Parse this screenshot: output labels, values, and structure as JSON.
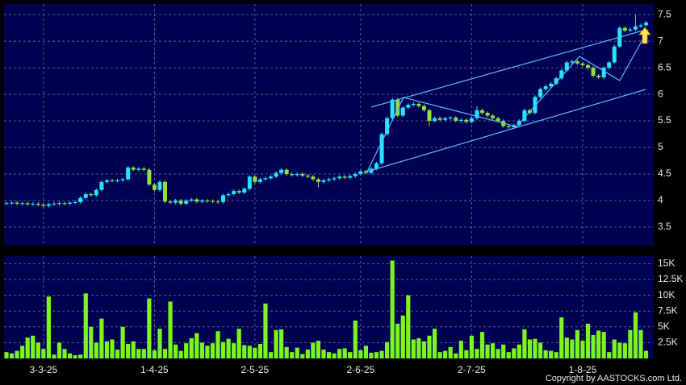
{
  "chart_data": [
    {
      "type": "candlestick",
      "open": [
        3.95,
        3.95,
        3.96,
        3.94,
        3.95,
        3.93,
        3.94,
        3.92,
        3.9,
        3.93,
        3.94,
        3.95,
        3.94,
        3.96,
        3.97,
        4.05,
        4.12,
        4.1,
        4.2,
        4.35,
        4.38,
        4.37,
        4.38,
        4.4,
        4.62,
        4.58,
        4.6,
        4.58,
        4.3,
        4.2,
        4.35,
        3.98,
        3.96,
        4.0,
        3.94,
        4.0,
        4.02,
        3.98,
        4.0,
        3.99,
        3.98,
        3.97,
        4.1,
        4.12,
        4.18,
        4.15,
        4.22,
        4.45,
        4.35,
        4.4,
        4.42,
        4.45,
        4.52,
        4.58,
        4.5,
        4.48,
        4.5,
        4.47,
        4.45,
        4.4,
        4.35,
        4.38,
        4.4,
        4.42,
        4.45,
        4.43,
        4.46,
        4.5,
        4.55,
        4.52,
        4.6,
        4.7,
        5.25,
        5.55,
        5.9,
        5.6,
        5.75,
        5.8,
        5.82,
        5.78,
        5.7,
        5.5,
        5.55,
        5.52,
        5.55,
        5.56,
        5.5,
        5.52,
        5.48,
        5.55,
        5.7,
        5.65,
        5.6,
        5.55,
        5.5,
        5.4,
        5.38,
        5.42,
        5.5,
        5.7,
        5.65,
        5.95,
        6.1,
        6.15,
        6.2,
        6.3,
        6.45,
        6.6,
        6.62,
        6.58,
        6.55,
        6.5,
        6.35,
        6.32,
        6.5,
        6.6,
        6.9,
        7.25,
        7.2,
        7.22,
        7.28,
        7.3
      ],
      "high": [
        3.98,
        3.99,
        3.99,
        3.98,
        3.98,
        3.97,
        3.97,
        3.95,
        3.96,
        3.97,
        3.98,
        3.98,
        3.99,
        4.0,
        4.08,
        4.15,
        4.15,
        4.23,
        4.38,
        4.41,
        4.41,
        4.41,
        4.43,
        4.65,
        4.65,
        4.63,
        4.63,
        4.61,
        4.33,
        4.38,
        4.38,
        4.01,
        4.03,
        4.03,
        4.03,
        4.05,
        4.05,
        4.03,
        4.03,
        4.02,
        4.01,
        4.13,
        4.15,
        4.21,
        4.21,
        4.25,
        4.48,
        4.48,
        4.43,
        4.45,
        4.48,
        4.55,
        4.61,
        4.61,
        4.53,
        4.53,
        4.53,
        4.5,
        4.48,
        4.43,
        4.41,
        4.43,
        4.45,
        4.48,
        4.48,
        4.49,
        4.53,
        4.58,
        4.58,
        4.63,
        4.73,
        5.28,
        5.58,
        5.93,
        5.93,
        5.78,
        5.83,
        5.85,
        5.85,
        5.81,
        5.73,
        5.58,
        5.58,
        5.58,
        5.59,
        5.59,
        5.55,
        5.55,
        5.58,
        5.78,
        5.73,
        5.68,
        5.63,
        5.58,
        5.53,
        5.43,
        5.45,
        5.53,
        5.73,
        5.73,
        5.98,
        6.13,
        6.18,
        6.23,
        6.33,
        6.48,
        6.63,
        6.65,
        6.65,
        6.61,
        6.58,
        6.53,
        6.38,
        6.53,
        6.63,
        6.93,
        7.28,
        7.28,
        7.25,
        7.5,
        7.33,
        7.38
      ],
      "low": [
        3.92,
        3.92,
        3.91,
        3.91,
        3.9,
        3.9,
        3.89,
        3.87,
        3.87,
        3.9,
        3.91,
        3.91,
        3.91,
        3.93,
        3.94,
        4.02,
        4.07,
        4.07,
        4.17,
        4.32,
        4.34,
        4.34,
        4.35,
        4.37,
        4.55,
        4.55,
        4.55,
        4.27,
        4.17,
        4.17,
        3.95,
        3.93,
        3.93,
        3.91,
        3.91,
        3.97,
        3.95,
        3.95,
        3.96,
        3.95,
        3.94,
        3.94,
        4.07,
        4.09,
        4.12,
        4.12,
        4.19,
        4.32,
        4.32,
        4.37,
        4.39,
        4.42,
        4.49,
        4.47,
        4.45,
        4.45,
        4.44,
        4.42,
        4.37,
        4.25,
        4.32,
        4.35,
        4.37,
        4.39,
        4.4,
        4.4,
        4.43,
        4.47,
        4.49,
        4.49,
        4.57,
        4.67,
        5.22,
        5.52,
        5.57,
        5.57,
        5.72,
        5.77,
        5.75,
        5.67,
        5.4,
        5.47,
        5.49,
        5.49,
        5.52,
        5.47,
        5.47,
        5.45,
        5.45,
        5.52,
        5.62,
        5.57,
        5.52,
        5.47,
        5.37,
        5.35,
        5.35,
        5.39,
        5.47,
        5.62,
        5.62,
        5.92,
        6.07,
        6.12,
        6.17,
        6.27,
        6.42,
        6.57,
        6.55,
        6.52,
        6.47,
        6.32,
        6.29,
        6.29,
        6.47,
        6.57,
        6.87,
        7.17,
        7.17,
        7.19,
        7.25,
        7.27
      ],
      "close": [
        3.95,
        3.96,
        3.94,
        3.95,
        3.93,
        3.94,
        3.92,
        3.9,
        3.93,
        3.94,
        3.95,
        3.94,
        3.96,
        3.97,
        4.05,
        4.12,
        4.1,
        4.2,
        4.35,
        4.38,
        4.37,
        4.38,
        4.4,
        4.62,
        4.58,
        4.6,
        4.58,
        4.3,
        4.2,
        4.35,
        3.98,
        3.96,
        4.0,
        3.94,
        4.0,
        4.02,
        3.98,
        4.0,
        3.99,
        3.98,
        3.97,
        4.1,
        4.12,
        4.18,
        4.15,
        4.22,
        4.45,
        4.35,
        4.4,
        4.42,
        4.45,
        4.52,
        4.58,
        4.5,
        4.48,
        4.5,
        4.47,
        4.45,
        4.4,
        4.35,
        4.38,
        4.4,
        4.42,
        4.45,
        4.43,
        4.46,
        4.5,
        4.55,
        4.52,
        4.6,
        4.7,
        5.25,
        5.55,
        5.9,
        5.6,
        5.75,
        5.8,
        5.82,
        5.78,
        5.7,
        5.5,
        5.55,
        5.52,
        5.55,
        5.56,
        5.5,
        5.52,
        5.48,
        5.55,
        5.7,
        5.65,
        5.6,
        5.55,
        5.5,
        5.4,
        5.38,
        5.42,
        5.5,
        5.7,
        5.65,
        5.95,
        6.1,
        6.15,
        6.2,
        6.3,
        6.45,
        6.6,
        6.62,
        6.58,
        6.55,
        6.5,
        6.35,
        6.32,
        6.5,
        6.6,
        6.9,
        7.25,
        7.2,
        7.22,
        7.28,
        7.3,
        7.35
      ],
      "up_color": "#22e6ff",
      "down_color": "#8fe03a",
      "ylim": [
        3.15,
        7.7
      ],
      "yticks": [
        3.5,
        4,
        4.5,
        5,
        5.5,
        6,
        6.5,
        7,
        7.5
      ],
      "grid": true
    },
    {
      "type": "bar",
      "categories": [
        null,
        null,
        null,
        null,
        null,
        null,
        null,
        "3-3-25",
        null,
        null,
        null,
        null,
        null,
        null,
        null,
        null,
        null,
        null,
        null,
        null,
        null,
        null,
        null,
        null,
        null,
        null,
        null,
        null,
        "1-4-25",
        null,
        null,
        null,
        null,
        null,
        null,
        null,
        null,
        null,
        null,
        null,
        null,
        null,
        null,
        null,
        null,
        null,
        null,
        "2-5-25",
        null,
        null,
        null,
        null,
        null,
        null,
        null,
        null,
        null,
        null,
        null,
        null,
        null,
        null,
        null,
        null,
        null,
        null,
        null,
        "2-6-25",
        null,
        null,
        null,
        null,
        null,
        null,
        null,
        null,
        null,
        null,
        null,
        null,
        null,
        null,
        null,
        null,
        null,
        null,
        null,
        null,
        "2-7-25",
        null,
        null,
        null,
        null,
        null,
        null,
        null,
        null,
        null,
        null,
        null,
        null,
        null,
        null,
        null,
        null,
        null,
        null,
        null,
        null,
        "1-8-25",
        null,
        null,
        null,
        null,
        null,
        null,
        null,
        null,
        null,
        null,
        null,
        null
      ],
      "values": [
        1000,
        800,
        1200,
        2000,
        3300,
        3600,
        2500,
        1500,
        9800,
        600,
        2500,
        1500,
        800,
        500,
        600,
        10300,
        5000,
        2500,
        6300,
        2700,
        3000,
        1400,
        5000,
        2300,
        2700,
        1500,
        1500,
        9500,
        1300,
        4700,
        1500,
        9000,
        2200,
        1200,
        2400,
        3200,
        4000,
        2500,
        2000,
        2400,
        4300,
        2600,
        3100,
        2400,
        4700,
        2100,
        2000,
        1700,
        2300,
        8700,
        1000,
        4500,
        4600,
        1800,
        1000,
        1700,
        700,
        1400,
        2500,
        2800,
        1400,
        1000,
        800,
        1500,
        1600,
        1000,
        6000,
        1300,
        2000,
        900,
        1000,
        1200,
        2600,
        15500,
        5500,
        6800,
        10000,
        3000,
        3200,
        2700,
        3600,
        4700,
        1000,
        1200,
        1800,
        800,
        2800,
        1300,
        3600,
        1500,
        4200,
        2200,
        2400,
        1500,
        2200,
        1000,
        1600,
        2200,
        4600,
        3000,
        3100,
        2500,
        1300,
        1200,
        1000,
        6500,
        3300,
        3000,
        4500,
        2800,
        5500,
        3700,
        4400,
        4200,
        1000,
        3000,
        2500,
        2400,
        4500,
        7300,
        4500,
        1200
      ],
      "color": "#7cf51e",
      "ylim": [
        0,
        16200
      ],
      "yticks": [
        {
          "value": 2500,
          "label": "2.5K"
        },
        {
          "value": 5000,
          "label": "5K"
        },
        {
          "value": 7500,
          "label": "7.5K"
        },
        {
          "value": 10000,
          "label": "10K"
        },
        {
          "value": 12500,
          "label": "12.5K"
        },
        {
          "value": 15000,
          "label": "15K"
        }
      ],
      "grid": true
    },
    {
      "type": "note",
      "text": "Copyright by AASTOCKS.com Ltd."
    }
  ]
}
